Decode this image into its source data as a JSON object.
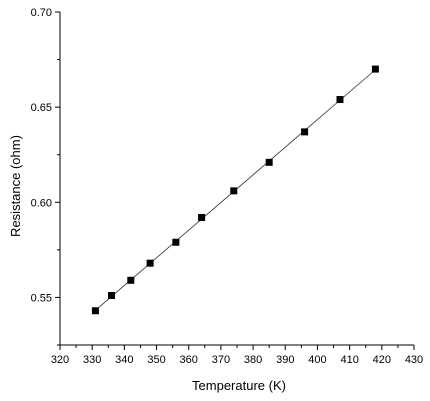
{
  "chart_data": {
    "type": "scatter",
    "xlabel": "Temperature (K)",
    "ylabel": "Resistance (ohm)",
    "xlim": [
      320,
      430
    ],
    "ylim": [
      0.525,
      0.7
    ],
    "x_ticks": [
      320,
      330,
      340,
      350,
      360,
      370,
      380,
      390,
      400,
      410,
      420,
      430
    ],
    "y_ticks": [
      0.55,
      0.6,
      0.65,
      0.7
    ],
    "y_tick_labels": [
      "0.55",
      "0.60",
      "0.65",
      "0.70"
    ],
    "marker": "square",
    "grid": false,
    "trend_line": true,
    "series": [
      {
        "x": [
          331,
          336,
          342,
          348,
          356,
          364,
          374,
          385,
          396,
          407,
          418
        ],
        "y": [
          0.543,
          0.551,
          0.559,
          0.568,
          0.579,
          0.592,
          0.606,
          0.621,
          0.637,
          0.654,
          0.67
        ]
      }
    ]
  }
}
